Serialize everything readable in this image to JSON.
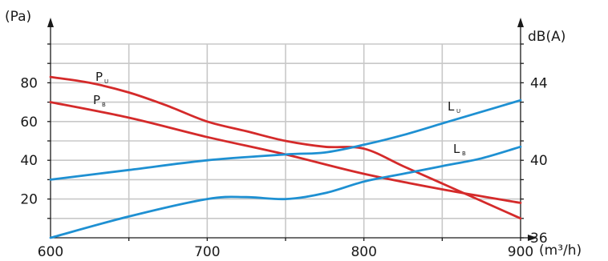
{
  "chart_data": {
    "type": "line",
    "xlabel": "(m³/h)",
    "ylabel_left": "(Pa)",
    "ylabel_right": "dB(A)",
    "xlim": [
      600,
      900
    ],
    "ylim_left": [
      0,
      100
    ],
    "ylim_right": [
      36,
      46
    ],
    "x_ticks": [
      600,
      700,
      800,
      900
    ],
    "y_ticks_left": [
      20,
      40,
      60,
      80
    ],
    "y_ticks_right": [
      36,
      40,
      44
    ],
    "grid": true,
    "colors": {
      "pressure": "#d42a2a",
      "sound": "#1e90d2",
      "grid": "#c8c8c8",
      "axis": "#1a1a1a"
    },
    "series": [
      {
        "name": "PU",
        "label_main": "P",
        "label_sub": "U",
        "axis": "left",
        "color": "#d42a2a",
        "x": [
          600,
          625,
          650,
          675,
          700,
          725,
          750,
          775,
          800,
          825,
          850,
          875,
          900
        ],
        "values": [
          83,
          80,
          75,
          68,
          60,
          55,
          50,
          47,
          46,
          37,
          28,
          19,
          10
        ]
      },
      {
        "name": "PB",
        "label_main": "P",
        "label_sub": "B",
        "axis": "left",
        "color": "#d42a2a",
        "x": [
          600,
          650,
          700,
          750,
          800,
          850,
          900
        ],
        "values": [
          70,
          62,
          52,
          43,
          33,
          25,
          18
        ]
      },
      {
        "name": "LU",
        "label_main": "L",
        "label_sub": "U",
        "axis": "right",
        "color": "#1e90d2",
        "x": [
          600,
          650,
          700,
          750,
          775,
          800,
          825,
          850,
          875,
          900
        ],
        "values": [
          39.0,
          39.5,
          40.0,
          40.3,
          40.4,
          40.8,
          41.3,
          41.9,
          42.5,
          43.1
        ]
      },
      {
        "name": "LB",
        "label_main": "L",
        "label_sub": "B",
        "axis": "right",
        "color": "#1e90d2",
        "x": [
          600,
          650,
          700,
          725,
          750,
          775,
          800,
          825,
          850,
          875,
          900
        ],
        "values": [
          36.0,
          37.1,
          38.0,
          38.1,
          38.0,
          38.3,
          38.9,
          39.3,
          39.7,
          40.1,
          40.7
        ]
      }
    ]
  }
}
